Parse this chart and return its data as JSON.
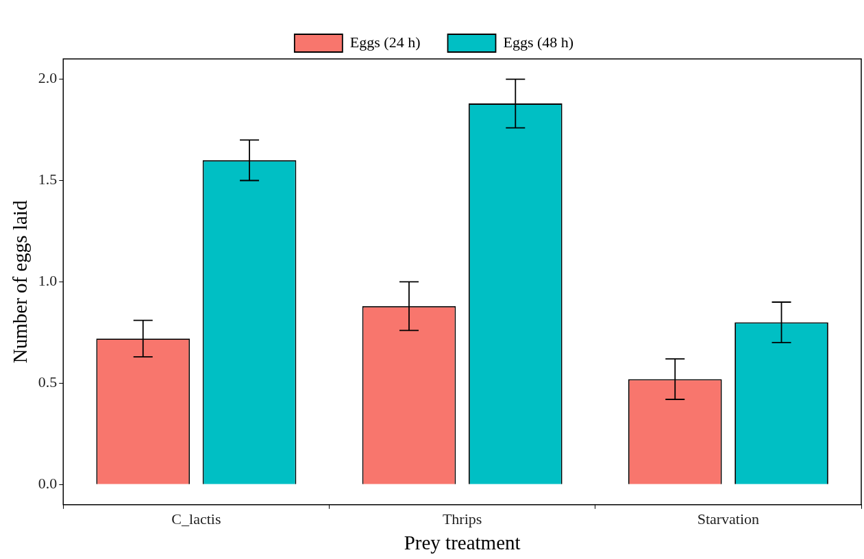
{
  "chart_data": {
    "type": "bar",
    "xlabel": "Prey treatment",
    "ylabel": "Number of eggs laid",
    "categories": [
      "C_lactis",
      "Thrips",
      "Starvation"
    ],
    "series": [
      {
        "name": "Eggs (24 h)",
        "color": "#f8766d",
        "values": [
          0.72,
          0.88,
          0.52
        ],
        "errors": [
          0.09,
          0.12,
          0.1
        ]
      },
      {
        "name": "Eggs (48 h)",
        "color": "#00bfc4",
        "values": [
          1.6,
          1.88,
          0.8
        ],
        "errors": [
          0.1,
          0.12,
          0.1
        ]
      }
    ],
    "ylim": [
      -0.1,
      2.1
    ],
    "yticks": [
      {
        "value": 0,
        "label": "0.0"
      },
      0.5,
      {
        "value": 1,
        "label": "1.0"
      },
      1.5,
      {
        "value": 2,
        "label": "2.0"
      }
    ],
    "legend": "top"
  }
}
